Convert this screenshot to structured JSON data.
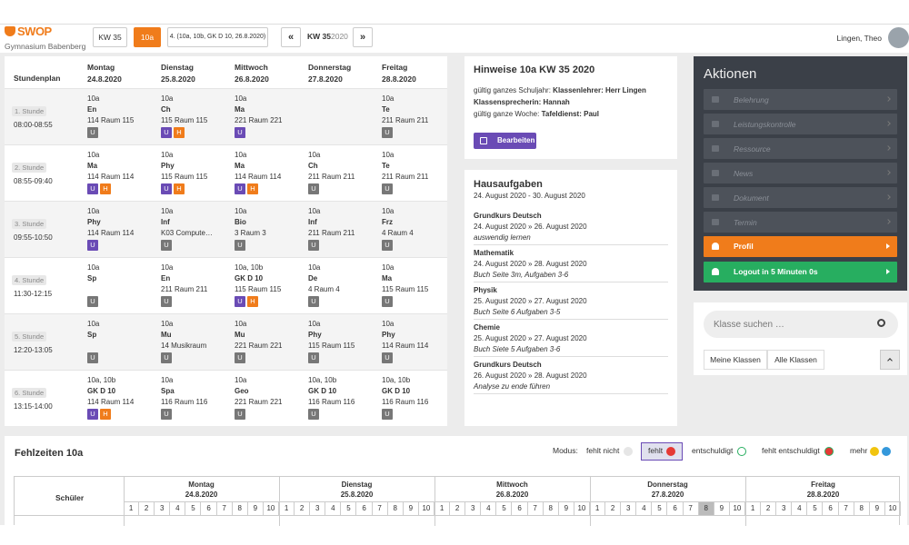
{
  "header": {
    "logo": "SWOP",
    "school": "Gymnasium Babenberg",
    "buttons": [
      "KW 35",
      "10a",
      "4. (10a, 10b, GK D 10, 26.8.2020)"
    ],
    "prev": "«",
    "week": "KW 35",
    "year": "2020",
    "next": "»",
    "user": "Lingen, Theo"
  },
  "timetable": {
    "title": "Stundenplan",
    "days": [
      {
        "name": "Montag",
        "date": "24.8.2020"
      },
      {
        "name": "Dienstag",
        "date": "25.8.2020"
      },
      {
        "name": "Mittwoch",
        "date": "26.8.2020"
      },
      {
        "name": "Donnerstag",
        "date": "27.8.2020"
      },
      {
        "name": "Freitag",
        "date": "28.8.2020"
      }
    ],
    "rows": [
      {
        "period": "1. Stunde",
        "time": "08:00-08:55",
        "cells": [
          {
            "class": "10a",
            "subject": "En",
            "room": "114 Raum 115",
            "badges": [
              {
                "label": "U",
                "color": "#777777"
              }
            ]
          },
          {
            "class": "10a",
            "subject": "Ch",
            "room": "115 Raum 115",
            "badges": [
              {
                "label": "U",
                "color": "#6a4bb5"
              },
              {
                "label": "H",
                "color": "#f07c1b"
              }
            ]
          },
          {
            "class": "10a",
            "subject": "Ma",
            "room": "221 Raum 221",
            "badges": [
              {
                "label": "U",
                "color": "#6a4bb5"
              }
            ]
          },
          null,
          {
            "class": "10a",
            "subject": "Te",
            "room": "211 Raum 211",
            "badges": [
              {
                "label": "U",
                "color": "#777777"
              }
            ]
          }
        ]
      },
      {
        "period": "2. Stunde",
        "time": "08:55-09:40",
        "cells": [
          {
            "class": "10a",
            "subject": "Ma",
            "room": "114 Raum 114",
            "badges": [
              {
                "label": "U",
                "color": "#6a4bb5"
              },
              {
                "label": "H",
                "color": "#f07c1b"
              }
            ]
          },
          {
            "class": "10a",
            "subject": "Phy",
            "room": "115 Raum 115",
            "badges": [
              {
                "label": "U",
                "color": "#6a4bb5"
              },
              {
                "label": "H",
                "color": "#f07c1b"
              }
            ]
          },
          {
            "class": "10a",
            "subject": "Ma",
            "room": "114 Raum 114",
            "badges": [
              {
                "label": "U",
                "color": "#6a4bb5"
              },
              {
                "label": "H",
                "color": "#f07c1b"
              }
            ]
          },
          {
            "class": "10a",
            "subject": "Ch",
            "room": "211 Raum 211",
            "badges": [
              {
                "label": "U",
                "color": "#777777"
              }
            ]
          },
          {
            "class": "10a",
            "subject": "Te",
            "room": "211 Raum 211",
            "badges": [
              {
                "label": "U",
                "color": "#777777"
              }
            ]
          }
        ]
      },
      {
        "period": "3. Stunde",
        "time": "09:55-10:50",
        "cells": [
          {
            "class": "10a",
            "subject": "Phy",
            "room": "114 Raum 114",
            "badges": [
              {
                "label": "U",
                "color": "#6a4bb5"
              }
            ]
          },
          {
            "class": "10a",
            "subject": "Inf",
            "room": "K03 Compute…",
            "badges": [
              {
                "label": "U",
                "color": "#777777"
              }
            ]
          },
          {
            "class": "10a",
            "subject": "Bio",
            "room": "3 Raum 3",
            "badges": [
              {
                "label": "U",
                "color": "#777777"
              }
            ]
          },
          {
            "class": "10a",
            "subject": "Inf",
            "room": "211 Raum 211",
            "badges": [
              {
                "label": "U",
                "color": "#777777"
              }
            ]
          },
          {
            "class": "10a",
            "subject": "Frz",
            "room": "4 Raum 4",
            "badges": [
              {
                "label": "U",
                "color": "#777777"
              }
            ]
          }
        ]
      },
      {
        "period": "4. Stunde",
        "time": "11:30-12:15",
        "cells": [
          {
            "class": "10a",
            "subject": "Sp",
            "badges": [
              {
                "label": "U",
                "color": "#777777"
              }
            ]
          },
          {
            "class": "10a",
            "subject": "En",
            "room": "211 Raum 211",
            "badges": [
              {
                "label": "U",
                "color": "#777777"
              }
            ]
          },
          {
            "class": "10a, 10b",
            "subject": "GK D 10",
            "room": "115 Raum 115",
            "badges": [
              {
                "label": "U",
                "color": "#6a4bb5"
              },
              {
                "label": "H",
                "color": "#f07c1b"
              }
            ]
          },
          {
            "class": "10a",
            "subject": "De",
            "room": "4 Raum 4",
            "badges": [
              {
                "label": "U",
                "color": "#777777"
              }
            ]
          },
          {
            "class": "10a",
            "subject": "Ma",
            "room": "115 Raum 115",
            "badges": [
              {
                "label": "U",
                "color": "#777777"
              }
            ]
          }
        ]
      },
      {
        "period": "5. Stunde",
        "time": "12:20-13:05",
        "cells": [
          {
            "class": "10a",
            "subject": "Sp",
            "badges": [
              {
                "label": "U",
                "color": "#777777"
              }
            ]
          },
          {
            "class": "10a",
            "subject": "Mu",
            "room": "14 Musikraum",
            "badges": [
              {
                "label": "U",
                "color": "#777777"
              }
            ]
          },
          {
            "class": "10a",
            "subject": "Mu",
            "room": "221 Raum 221",
            "badges": [
              {
                "label": "U",
                "color": "#777777"
              }
            ]
          },
          {
            "class": "10a",
            "subject": "Phy",
            "room": "115 Raum 115",
            "badges": [
              {
                "label": "U",
                "color": "#777777"
              }
            ]
          },
          {
            "class": "10a",
            "subject": "Phy",
            "room": "114 Raum 114",
            "badges": [
              {
                "label": "U",
                "color": "#777777"
              }
            ]
          }
        ]
      },
      {
        "period": "6. Stunde",
        "time": "13:15-14:00",
        "cells": [
          {
            "class": "10a, 10b",
            "subject": "GK D 10",
            "room": "114 Raum 114",
            "badges": [
              {
                "label": "U",
                "color": "#6a4bb5"
              },
              {
                "label": "H",
                "color": "#f07c1b"
              }
            ]
          },
          {
            "class": "10a",
            "subject": "Spa",
            "room": "116 Raum 116",
            "badges": [
              {
                "label": "U",
                "color": "#777777"
              }
            ]
          },
          {
            "class": "10a",
            "subject": "Geo",
            "room": "221 Raum 221",
            "badges": [
              {
                "label": "U",
                "color": "#777777"
              }
            ]
          },
          {
            "class": "10a, 10b",
            "subject": "GK D 10",
            "room": "116 Raum 116",
            "badges": [
              {
                "label": "U",
                "color": "#777777"
              }
            ]
          },
          {
            "class": "10a, 10b",
            "subject": "GK D 10",
            "room": "116 Raum 116",
            "badges": [
              {
                "label": "U",
                "color": "#777777"
              }
            ]
          }
        ]
      }
    ]
  },
  "notes": {
    "title": "Hinweise 10a KW 35 2020",
    "lines": [
      [
        "gültig ganzes Schuljahr: ",
        "Klassenlehrer: Herr Lingen"
      ],
      [
        "",
        "Klassensprecherin: Hannah"
      ],
      [
        "gültig ganze Woche: ",
        "Tafeldienst: Paul"
      ]
    ],
    "button": "Bearbeiten"
  },
  "homework": {
    "title": "Hausaufgaben",
    "range": "24. August 2020 - 30. August 2020",
    "items": [
      {
        "course": "Grundkurs Deutsch",
        "dates": "24. August 2020 » 26. August 2020",
        "task": "auswendig lernen"
      },
      {
        "course": "Mathematik",
        "dates": "24. August 2020 » 28. August 2020",
        "task": "Buch Seite 3m, Aufgaben 3-6"
      },
      {
        "course": "Physik",
        "dates": "25. August 2020 » 27. August 2020",
        "task": "Buch Seite 6 Aufgaben 3-5"
      },
      {
        "course": "Chemie",
        "dates": "25. August 2020 » 27. August 2020",
        "task": "Buch Siete 5 Aufgaben 3-6"
      },
      {
        "course": "Grundkurs Deutsch",
        "dates": "26. August 2020 » 28. August 2020",
        "task": "Analyse zu ende führen"
      }
    ]
  },
  "actions": {
    "title": "Aktionen",
    "items": [
      "Belehrung",
      "Leistungskontrolle",
      "Ressource",
      "News",
      "Dokument",
      "Termin"
    ],
    "profile": "Profil",
    "logout": "Logout in 5 Minuten 0s"
  },
  "search": {
    "placeholder": "Klasse suchen …",
    "buttons": [
      "Meine Klassen",
      "Alle Klassen"
    ]
  },
  "absences": {
    "title": "Fehlzeiten 10a",
    "mode_label": "Modus:",
    "modes": [
      "fehlt nicht",
      "fehlt",
      "entschuldigt",
      "fehlt entschuldigt",
      "mehr"
    ],
    "student_header": "Schüler",
    "periods": [
      1,
      2,
      3,
      4,
      5,
      6,
      7,
      8,
      9,
      10
    ]
  }
}
